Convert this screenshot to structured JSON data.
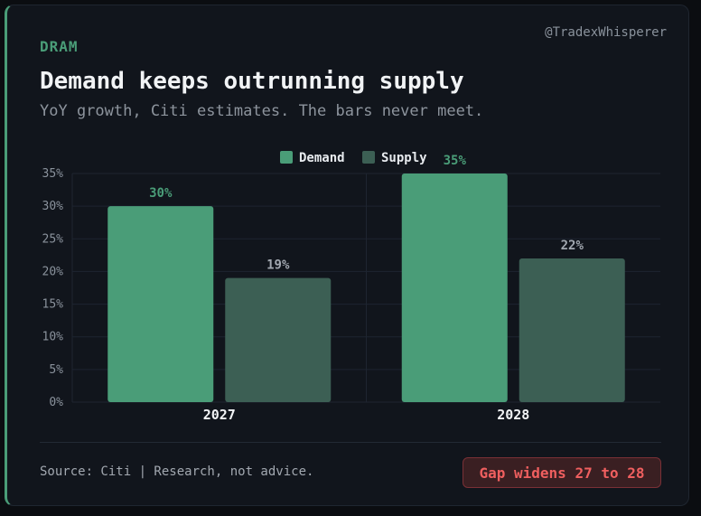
{
  "kicker": "DRAM",
  "handle": "@TradexWhisperer",
  "title": "Demand keeps outrunning supply",
  "subtitle": "YoY growth, Citi estimates. The bars never meet.",
  "footer": {
    "source": "Source: Citi | Research, not advice.",
    "callout": "Gap widens 27 to 28"
  },
  "colors": {
    "demand": "#4a9d78",
    "supply": "#3c5f54",
    "callout_text": "#ef5f5f"
  },
  "chart_data": {
    "type": "bar",
    "categories": [
      "2027",
      "2028"
    ],
    "series": [
      {
        "name": "Demand",
        "values": [
          30,
          35
        ],
        "value_labels": [
          "30%",
          "35%"
        ]
      },
      {
        "name": "Supply",
        "values": [
          19,
          22
        ],
        "value_labels": [
          "19%",
          "22%"
        ]
      }
    ],
    "ylim": [
      0,
      35
    ],
    "yticks": [
      0,
      5,
      10,
      15,
      20,
      25,
      30,
      35
    ],
    "ytick_labels": [
      "0%",
      "5%",
      "10%",
      "15%",
      "20%",
      "25%",
      "30%",
      "35%"
    ],
    "grid": true,
    "legend": "top-center"
  }
}
